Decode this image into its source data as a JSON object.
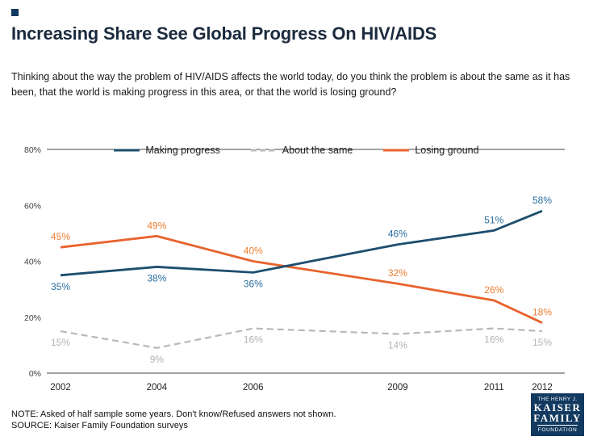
{
  "header": {
    "title": "Increasing Share See Global Progress On HIV/AIDS",
    "subtitle": "Thinking about the way the problem of HIV/AIDS affects the world today, do you think the problem is about the same as it has been, that the world is making progress in this area, or that the world is losing ground?"
  },
  "chart_data": {
    "type": "line",
    "x": [
      2002,
      2004,
      2006,
      2009,
      2011,
      2012
    ],
    "x_tick_labels": [
      "2002",
      "2004",
      "2006",
      "2009",
      "2011",
      "2012"
    ],
    "series": [
      {
        "name": "Making progress",
        "values": [
          35,
          38,
          36,
          46,
          51,
          58
        ],
        "color": "#1d4e6e",
        "label_color": "#2a6d9c",
        "dash": false,
        "width": 2.8,
        "z": 3,
        "label_side": [
          "below",
          "below",
          "below",
          "above",
          "above",
          "above"
        ]
      },
      {
        "name": "About the same",
        "values": [
          15,
          9,
          16,
          14,
          16,
          15
        ],
        "color": "#b8b8b8",
        "label_color": "#b3b3b3",
        "dash": true,
        "width": 2.2,
        "z": 1,
        "label_side": [
          "below",
          "below",
          "below",
          "below",
          "below",
          "below"
        ]
      },
      {
        "name": "Losing ground",
        "values": [
          45,
          49,
          40,
          32,
          26,
          18
        ],
        "color": "#e8632d",
        "label_color": "#ed7c31",
        "dash": false,
        "width": 2.8,
        "z": 2,
        "label_side": [
          "above",
          "above",
          "above",
          "above",
          "above",
          "above"
        ]
      }
    ],
    "ylim": [
      0,
      80
    ],
    "y_ticks": [
      0,
      20,
      40,
      60,
      80
    ],
    "y_tick_labels": [
      "0%",
      "20%",
      "40%",
      "60%",
      "80%"
    ],
    "grid": false,
    "legend_position": "top-center",
    "title": "Increasing Share See Global Progress On HIV/AIDS",
    "xlabel": "",
    "ylabel": ""
  },
  "footer": {
    "note": "NOTE: Asked of half sample some years. Don't know/Refused answers not shown.",
    "source": "SOURCE: Kaiser Family Foundation surveys"
  },
  "logo": {
    "line1": "THE HENRY J.",
    "line2": "KAISER",
    "line3": "FAMILY",
    "line4": "FOUNDATION"
  },
  "colors": {
    "accent_navy": "#12395f",
    "blue_line": "#1d4e6e",
    "orange_line": "#e8632d",
    "gray_line": "#b8b8b8"
  }
}
